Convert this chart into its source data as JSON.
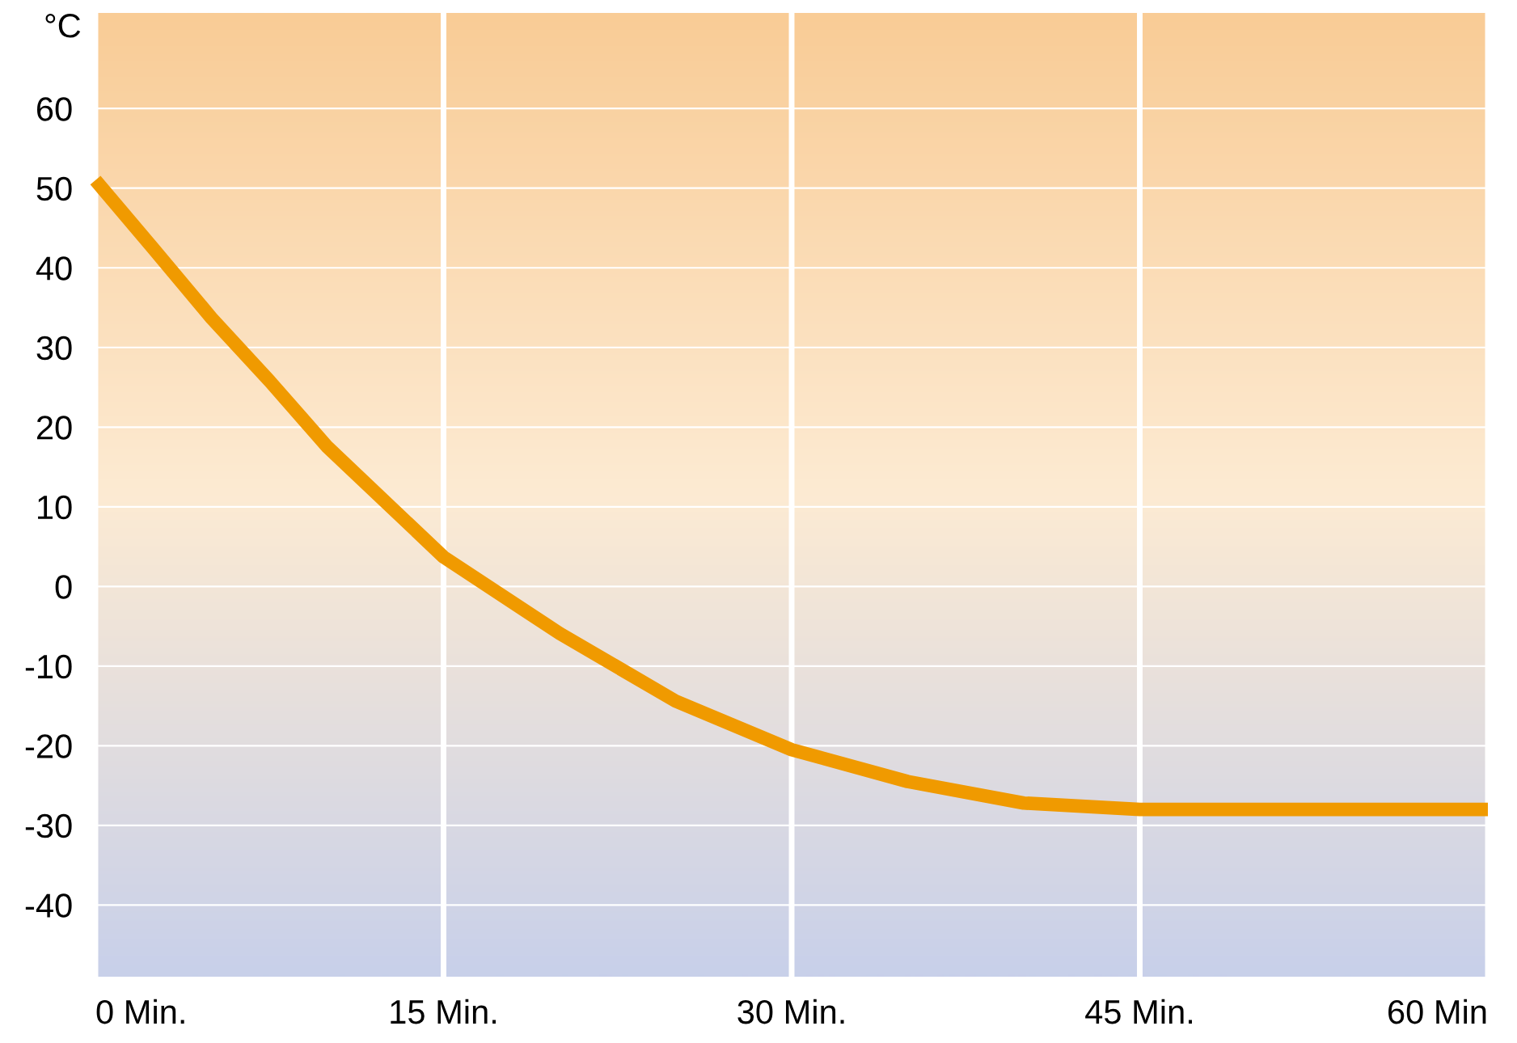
{
  "chart_data": {
    "type": "line",
    "ylabel": "°C",
    "x": [
      0,
      2.5,
      5,
      7.5,
      10,
      15,
      20,
      25,
      30,
      35,
      40,
      45,
      60
    ],
    "series": [
      {
        "color": "#f09a00",
        "values": [
          51,
          42.4,
          33.7,
          25.8,
          17.5,
          3.7,
          -5.9,
          -14.4,
          -20.5,
          -24.5,
          -27.2,
          -28,
          -28
        ]
      }
    ],
    "xlim": [
      0,
      60
    ],
    "xticks": [
      {
        "value": 0,
        "label": "0 Min."
      },
      {
        "value": 15,
        "label": "15 Min."
      },
      {
        "value": 30,
        "label": "30 Min."
      },
      {
        "value": 45,
        "label": "45 Min."
      },
      {
        "value": 60,
        "label": "60 Min"
      }
    ],
    "ylim": [
      -49,
      72
    ],
    "yticks": [
      -40,
      -30,
      -20,
      -10,
      0,
      10,
      20,
      30,
      40,
      50,
      60
    ],
    "grid": true,
    "marker": "none",
    "line_style": "solid"
  }
}
